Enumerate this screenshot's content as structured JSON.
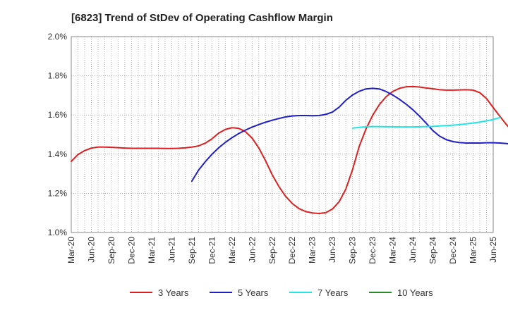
{
  "chart_data": {
    "type": "line",
    "title": "[6823]  Trend of StDev of Operating Cashflow Margin",
    "xlabel": "",
    "ylabel": "",
    "x_tick_labels": [
      "Mar-20",
      "Jun-20",
      "Sep-20",
      "Dec-20",
      "Mar-21",
      "Jun-21",
      "Sep-21",
      "Dec-21",
      "Mar-22",
      "Jun-22",
      "Sep-22",
      "Dec-22",
      "Mar-23",
      "Jun-23",
      "Sep-23",
      "Dec-23",
      "Mar-24",
      "Jun-24",
      "Sep-24",
      "Dec-24",
      "Mar-25",
      "Jun-25"
    ],
    "y_ticks": [
      1.0,
      1.2,
      1.4,
      1.6,
      1.8,
      2.0
    ],
    "y_tick_labels": [
      "1.0%",
      "1.2%",
      "1.4%",
      "1.6%",
      "1.8%",
      "2.0%"
    ],
    "ylim": [
      1.0,
      2.0
    ],
    "grid": true,
    "legend_position": "bottom",
    "series": [
      {
        "name": "3 Years",
        "color": "#dd1f1f",
        "start_month": 0,
        "values": [
          1.363,
          1.398,
          1.418,
          1.431,
          1.436,
          1.436,
          1.435,
          1.433,
          1.431,
          1.43,
          1.43,
          1.43,
          1.43,
          1.43,
          1.429,
          1.429,
          1.43,
          1.432,
          1.436,
          1.442,
          1.456,
          1.478,
          1.507,
          1.526,
          1.535,
          1.532,
          1.515,
          1.482,
          1.432,
          1.367,
          1.295,
          1.235,
          1.185,
          1.148,
          1.122,
          1.107,
          1.1,
          1.097,
          1.101,
          1.12,
          1.157,
          1.222,
          1.321,
          1.44,
          1.528,
          1.598,
          1.653,
          1.693,
          1.72,
          1.736,
          1.744,
          1.745,
          1.743,
          1.738,
          1.734,
          1.729,
          1.727,
          1.727,
          1.728,
          1.729,
          1.727,
          1.714,
          1.684,
          1.638,
          1.593,
          1.55,
          1.512,
          1.479,
          1.457,
          1.447
        ]
      },
      {
        "name": "5 Years",
        "color": "#1f1fc8",
        "start_month": 18,
        "values": [
          1.262,
          1.318,
          1.361,
          1.399,
          1.432,
          1.46,
          1.484,
          1.505,
          1.523,
          1.538,
          1.551,
          1.563,
          1.573,
          1.582,
          1.59,
          1.595,
          1.597,
          1.597,
          1.596,
          1.597,
          1.603,
          1.615,
          1.64,
          1.675,
          1.702,
          1.721,
          1.733,
          1.736,
          1.733,
          1.72,
          1.702,
          1.68,
          1.655,
          1.627,
          1.594,
          1.558,
          1.52,
          1.492,
          1.474,
          1.464,
          1.459,
          1.457,
          1.457,
          1.457,
          1.458,
          1.458,
          1.457,
          1.454,
          1.451,
          1.448,
          1.444
        ]
      },
      {
        "name": "7 Years",
        "color": "#22e6e6",
        "start_month": 42,
        "values": [
          1.533,
          1.537,
          1.54,
          1.541,
          1.541,
          1.54,
          1.54,
          1.539,
          1.539,
          1.539,
          1.54,
          1.541,
          1.542,
          1.544,
          1.546,
          1.548,
          1.551,
          1.555,
          1.559,
          1.564,
          1.57,
          1.577,
          1.587
        ]
      },
      {
        "name": "10 Years",
        "color": "#2a8a2a",
        "start_month": 0,
        "values": []
      }
    ]
  }
}
